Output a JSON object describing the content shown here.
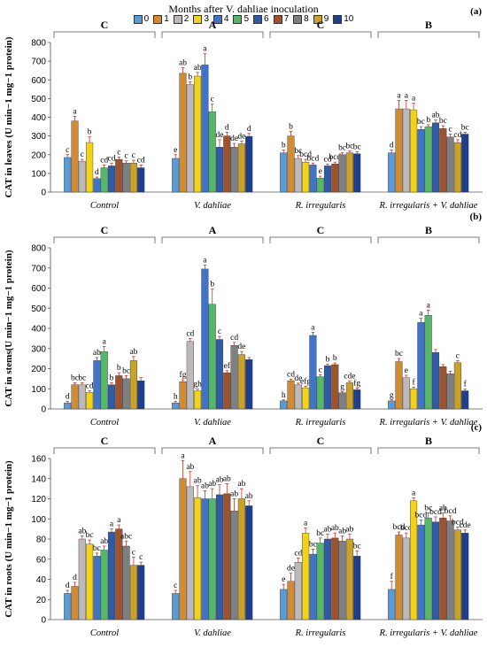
{
  "legend": {
    "title": "Months after V. dahliae inoculation",
    "items": [
      {
        "label": "0",
        "color": "#5B9BD5"
      },
      {
        "label": "1",
        "color": "#D58A2C"
      },
      {
        "label": "2",
        "color": "#BFB8B8"
      },
      {
        "label": "3",
        "color": "#F2D31C"
      },
      {
        "label": "4",
        "color": "#4472C4"
      },
      {
        "label": "5",
        "color": "#59B56A"
      },
      {
        "label": "6",
        "color": "#2F5AA6"
      },
      {
        "label": "7",
        "color": "#A0522D"
      },
      {
        "label": "8",
        "color": "#7F7F7F"
      },
      {
        "label": "9",
        "color": "#C9A227"
      },
      {
        "label": "10",
        "color": "#1F3F8C"
      }
    ]
  },
  "chart_data": [
    {
      "type": "bar",
      "panel_label": "(a)",
      "ylabel": "CAT in leaves (U min−1 mg−1 protein)",
      "ylim": [
        0,
        800
      ],
      "yticks": [
        0,
        100,
        200,
        300,
        400,
        500,
        600,
        700,
        800
      ],
      "categories": [
        "Control",
        "V. dahliae",
        "R. irregularis",
        "R. irregularis + V. dahliae"
      ],
      "group_letters": [
        "C",
        "A",
        "C",
        "B"
      ],
      "values": [
        [
          185,
          380,
          165,
          265,
          72,
          130,
          140,
          175,
          155,
          155,
          130
        ],
        [
          180,
          635,
          575,
          620,
          680,
          430,
          240,
          300,
          240,
          258,
          298
        ],
        [
          210,
          300,
          180,
          160,
          145,
          75,
          140,
          150,
          200,
          210,
          205
        ],
        [
          210,
          445,
          445,
          440,
          335,
          350,
          370,
          340,
          295,
          265,
          310
        ]
      ],
      "errors": [
        [
          15,
          25,
          10,
          30,
          8,
          15,
          15,
          12,
          12,
          15,
          15
        ],
        [
          20,
          30,
          15,
          20,
          60,
          40,
          40,
          20,
          20,
          15,
          15
        ],
        [
          15,
          25,
          15,
          15,
          10,
          10,
          10,
          10,
          10,
          10,
          10
        ],
        [
          15,
          45,
          45,
          35,
          15,
          10,
          15,
          15,
          15,
          15,
          10
        ]
      ],
      "letters": [
        [
          "c",
          "a",
          "c",
          "b",
          "d",
          "cd",
          "cd",
          "c",
          "c",
          "c",
          "cd"
        ],
        [
          "e",
          "ab",
          "b",
          "ab",
          "a",
          "c",
          "de",
          "d",
          "de",
          "de",
          "d"
        ],
        [
          "b",
          "b",
          "bc",
          "bcd",
          "bcd",
          "e",
          "cd",
          "bcd",
          "bc",
          "bc",
          "bc"
        ],
        [
          "d",
          "a",
          "a",
          "a",
          "bc",
          "b",
          "ab",
          "bc",
          "c",
          "cd",
          "bc"
        ]
      ]
    },
    {
      "type": "bar",
      "panel_label": "(b)",
      "ylabel": "CAT in stems(U min−1 mg−1 protein)",
      "ylim": [
        0,
        800
      ],
      "yticks": [
        0,
        100,
        200,
        300,
        400,
        500,
        600,
        700,
        800
      ],
      "categories": [
        "Control",
        "V. dahliae",
        "R. irregularis",
        "R. irregularis + V. dahliae"
      ],
      "group_letters": [
        "C",
        "A",
        "C",
        "B"
      ],
      "values": [
        [
          30,
          120,
          120,
          82,
          240,
          285,
          120,
          165,
          150,
          240,
          140
        ],
        [
          30,
          135,
          335,
          90,
          695,
          520,
          345,
          180,
          315,
          270,
          245
        ],
        [
          40,
          140,
          120,
          105,
          365,
          160,
          215,
          220,
          80,
          130,
          95
        ],
        [
          40,
          235,
          155,
          100,
          430,
          465,
          280,
          210,
          175,
          230,
          90
        ]
      ],
      "errors": [
        [
          8,
          10,
          10,
          8,
          15,
          25,
          10,
          15,
          15,
          20,
          15
        ],
        [
          8,
          10,
          15,
          8,
          20,
          75,
          15,
          10,
          15,
          15,
          10
        ],
        [
          5,
          8,
          8,
          8,
          15,
          10,
          8,
          8,
          5,
          8,
          8
        ],
        [
          5,
          15,
          12,
          8,
          20,
          25,
          15,
          10,
          12,
          10,
          8
        ]
      ],
      "letters": [
        [
          "d",
          "bc",
          "bc",
          "cd",
          "ab",
          "a",
          "b",
          "b",
          "bc",
          "ab",
          ""
        ],
        [
          "h",
          "fg",
          "cd",
          "gh",
          "a",
          "b",
          "c",
          "ef",
          "cd",
          "de",
          ""
        ],
        [
          "h",
          "cd",
          "de",
          "efg",
          "a",
          "c",
          "b",
          "b",
          "g",
          "cde",
          "fg"
        ],
        [
          "g",
          "bc",
          "e",
          "f",
          "a",
          "a",
          "",
          "",
          "",
          "c",
          "f"
        ]
      ]
    },
    {
      "type": "bar",
      "panel_label": "(c)",
      "ylabel": "CAT in roots (U min−1 mg−1 protein)",
      "ylim": [
        0,
        160
      ],
      "yticks": [
        0,
        20,
        40,
        60,
        80,
        100,
        120,
        140,
        160
      ],
      "categories": [
        "Control",
        "V. dahliae",
        "R. irregularis",
        "R. irregularis + V. dahliae"
      ],
      "group_letters": [
        "C",
        "A",
        "C",
        "B"
      ],
      "values": [
        [
          26,
          33,
          80,
          75,
          63,
          69,
          87,
          90,
          73,
          54,
          54
        ],
        [
          26,
          140,
          132,
          121,
          120,
          120,
          124,
          125,
          108,
          120,
          113
        ],
        [
          30,
          38,
          57,
          86,
          65,
          76,
          80,
          81,
          78,
          80,
          63
        ],
        [
          30,
          84,
          81,
          118,
          94,
          101,
          97,
          101,
          98,
          89,
          86
        ]
      ],
      "errors": [
        [
          3,
          4,
          3,
          4,
          3,
          4,
          3,
          4,
          5,
          8,
          3
        ],
        [
          3,
          18,
          15,
          12,
          8,
          10,
          10,
          10,
          12,
          10,
          5
        ],
        [
          5,
          8,
          4,
          5,
          5,
          5,
          5,
          5,
          5,
          5,
          5
        ],
        [
          8,
          3,
          5,
          3,
          5,
          5,
          5,
          5,
          5,
          3,
          3
        ]
      ],
      "letters": [
        [
          "d",
          "d",
          "ab",
          "bc",
          "bc",
          "ab",
          "a",
          "a",
          "abc",
          "c",
          "c"
        ],
        [
          "c",
          "a",
          "ab",
          "ab",
          "ab",
          "ab",
          "ab",
          "ab",
          "ab",
          "ab",
          "ab"
        ],
        [
          "e",
          "de",
          "cd",
          "a",
          "bc",
          "bc",
          "ab",
          "ab",
          "ab",
          "ab",
          "bc"
        ],
        [
          "f",
          "bcd",
          "bcd",
          "a",
          "bcd",
          "bc",
          "bcd",
          "ab",
          "bcd",
          "bcd",
          "cde"
        ]
      ]
    }
  ]
}
